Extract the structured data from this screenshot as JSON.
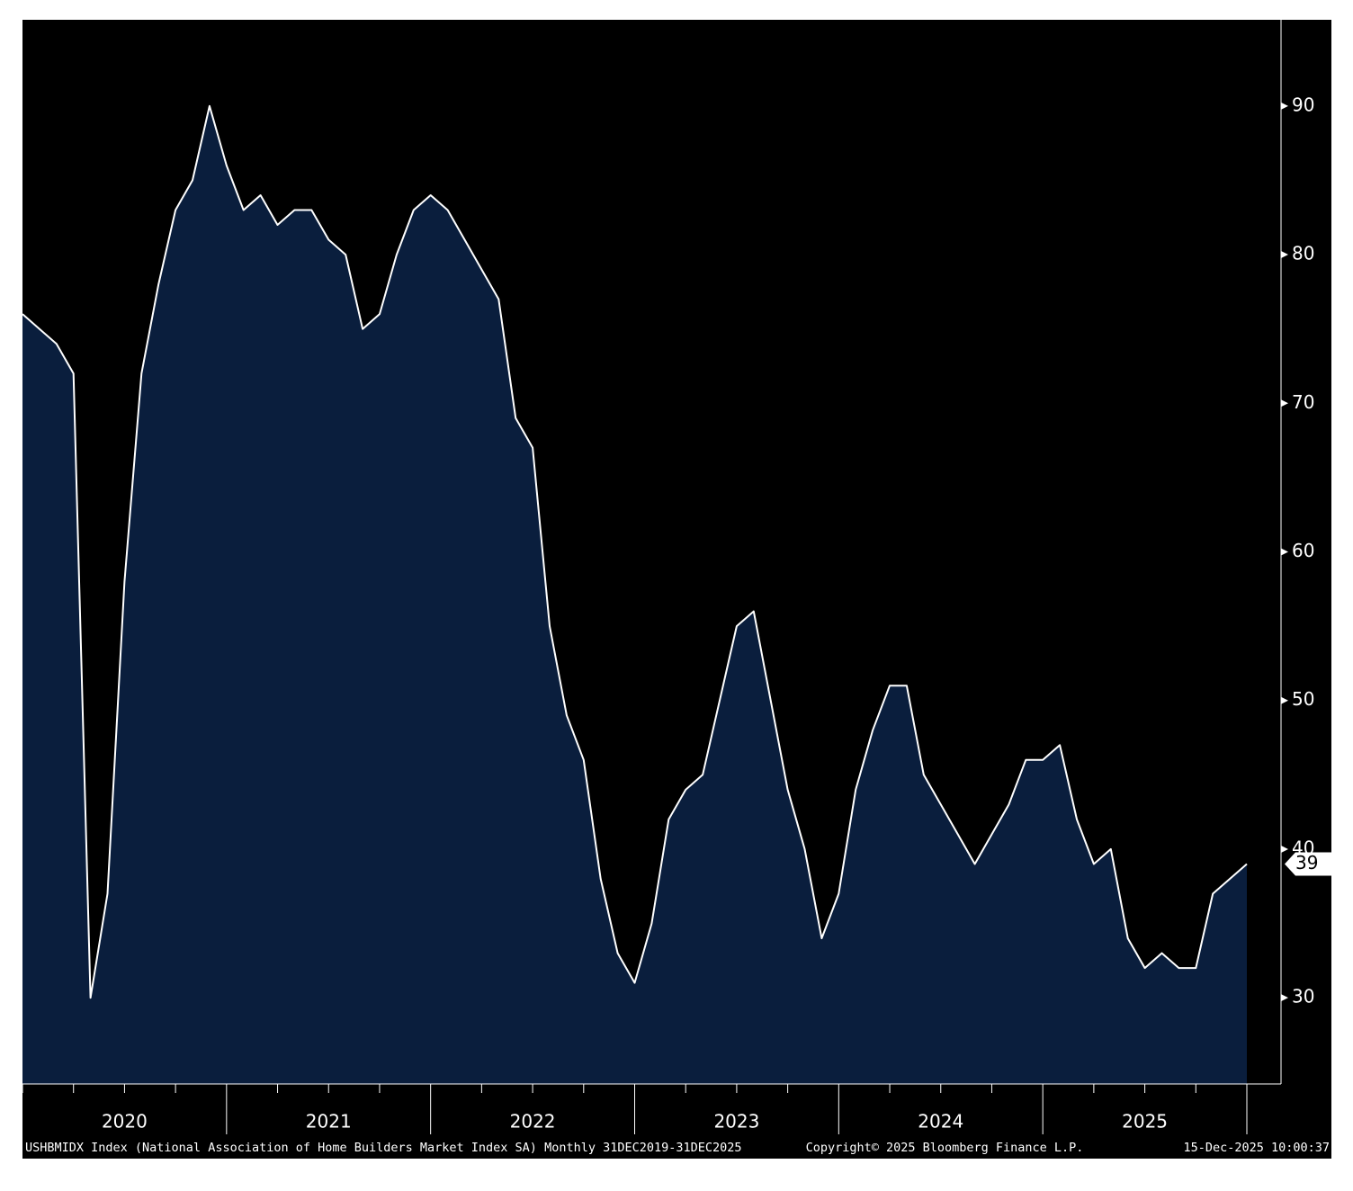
{
  "chart_data": {
    "type": "area",
    "footnote": "USHBMIDX Index (National Association of Home Builders Market Index SA) Monthly 31DEC2019-31DEC2025",
    "copyright": "Copyright© 2025 Bloomberg Finance L.P.",
    "timestamp": "15-Dec-2025 10:00:37",
    "year_labels": [
      "2020",
      "2021",
      "2022",
      "2023",
      "2024",
      "2025"
    ],
    "values": [
      76,
      75,
      74,
      72,
      30,
      37,
      58,
      72,
      78,
      83,
      85,
      90,
      86,
      83,
      84,
      82,
      83,
      83,
      81,
      80,
      75,
      76,
      80,
      83,
      84,
      83,
      81,
      79,
      77,
      69,
      67,
      55,
      49,
      46,
      38,
      33,
      31,
      35,
      42,
      44,
      45,
      50,
      55,
      56,
      50,
      44,
      40,
      34,
      37,
      44,
      48,
      51,
      51,
      45,
      43,
      41,
      39,
      41,
      43,
      46,
      46,
      47,
      42,
      39,
      40,
      34,
      32,
      33,
      32,
      32,
      37,
      38,
      39
    ],
    "color": "#0a1e3d",
    "line_color": "#ffffff",
    "ylim": [
      24.2,
      95.8
    ],
    "yticks": [
      30,
      40,
      50,
      60,
      70,
      80,
      90
    ],
    "last_value_label": true
  }
}
